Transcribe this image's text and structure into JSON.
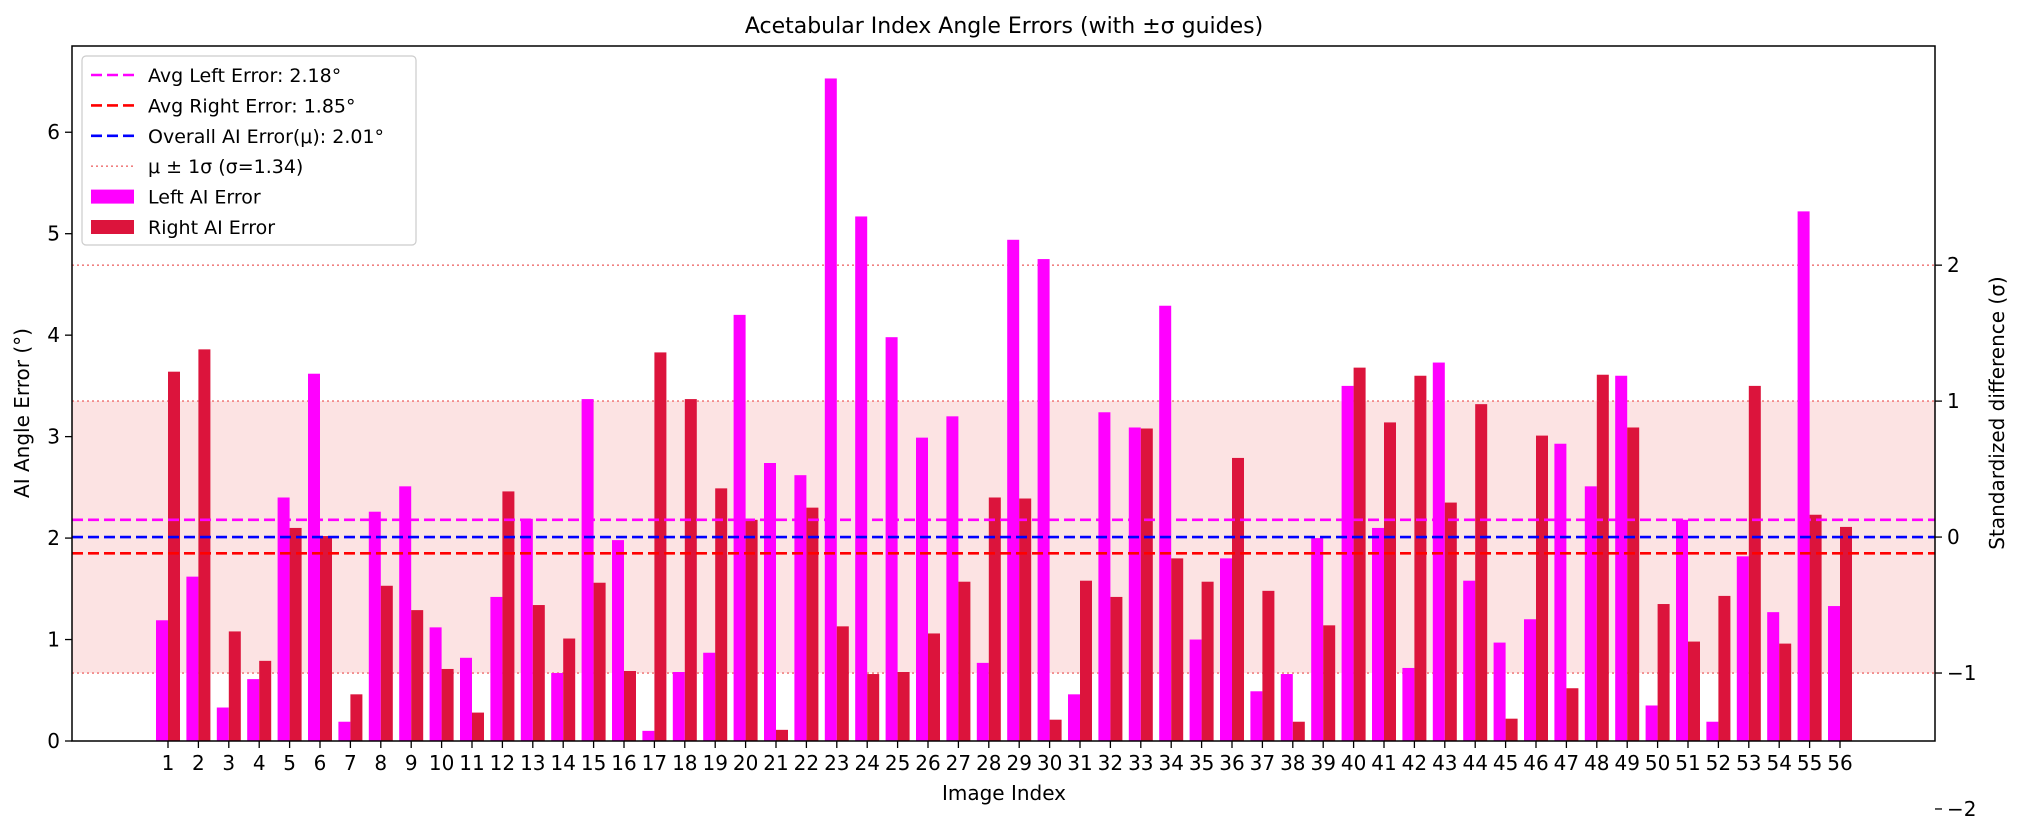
{
  "chart_data": {
    "type": "bar",
    "title": "Acetabular Index Angle Errors (with ±σ guides)",
    "xlabel": "Image Index",
    "ylabel": "AI Angle Error (°)",
    "ylabel_right": "Standardized difference (σ)",
    "ylim": [
      0,
      6.85
    ],
    "yticks": [
      0,
      1,
      2,
      3,
      4,
      5,
      6
    ],
    "y2ticks": [
      -2,
      -1,
      0,
      1,
      2
    ],
    "grid": false,
    "legend_position": "upper-left",
    "categories": [
      "1",
      "2",
      "3",
      "4",
      "5",
      "6",
      "7",
      "8",
      "9",
      "10",
      "11",
      "12",
      "13",
      "14",
      "15",
      "16",
      "17",
      "18",
      "19",
      "20",
      "21",
      "22",
      "23",
      "24",
      "25",
      "26",
      "27",
      "28",
      "29",
      "30",
      "31",
      "32",
      "33",
      "34",
      "35",
      "36",
      "37",
      "38",
      "39",
      "40",
      "41",
      "42",
      "43",
      "44",
      "45",
      "46",
      "47",
      "48",
      "49",
      "50",
      "51",
      "52",
      "53",
      "54",
      "55",
      "56"
    ],
    "series": [
      {
        "name": "Left AI Error",
        "color": "#ff00ff",
        "values": [
          1.19,
          1.62,
          0.33,
          0.61,
          2.4,
          3.62,
          0.19,
          2.26,
          2.51,
          1.12,
          0.82,
          1.42,
          2.19,
          0.67,
          3.37,
          1.98,
          0.1,
          0.68,
          0.87,
          4.2,
          2.74,
          2.62,
          6.53,
          5.17,
          3.98,
          2.99,
          3.2,
          0.77,
          4.94,
          4.75,
          0.46,
          3.24,
          3.09,
          4.29,
          1.0,
          1.8,
          0.49,
          0.66,
          2.0,
          3.5,
          2.1,
          0.72,
          3.73,
          1.58,
          0.97,
          1.2,
          2.93,
          2.51,
          3.6,
          0.35,
          2.18,
          0.19,
          1.82,
          1.27,
          5.22,
          1.33
        ]
      },
      {
        "name": "Right AI Error",
        "color": "#dc143c",
        "values": [
          3.64,
          3.86,
          1.08,
          0.79,
          2.1,
          2.02,
          0.46,
          1.53,
          1.29,
          0.71,
          0.28,
          2.46,
          1.34,
          1.01,
          1.56,
          0.69,
          3.83,
          3.37,
          2.49,
          2.18,
          0.11,
          2.3,
          1.13,
          0.66,
          0.68,
          1.06,
          1.57,
          2.4,
          2.39,
          0.21,
          1.58,
          1.42,
          3.08,
          1.8,
          1.57,
          2.79,
          1.48,
          0.19,
          1.14,
          3.68,
          3.14,
          3.6,
          2.35,
          3.32,
          0.22,
          3.01,
          0.52,
          3.61,
          3.09,
          1.35,
          0.98,
          1.43,
          3.5,
          0.96,
          2.23,
          2.11
        ]
      }
    ],
    "reference_lines": [
      {
        "label": "Avg Left Error: 2.18°",
        "value": 2.18,
        "color": "#ff00ff",
        "style": "dashed"
      },
      {
        "label": "Avg Right Error: 1.85°",
        "value": 1.85,
        "color": "#ff0000",
        "style": "dashed"
      },
      {
        "label": "Overall AI Error(μ): 2.01°",
        "value": 2.01,
        "color": "#0000ff",
        "style": "dashed"
      }
    ],
    "sigma_band": {
      "label": "μ ± 1σ (σ=1.34)",
      "mu": 2.01,
      "sigma": 1.34,
      "extra_line": 4.69,
      "color": "#f08080"
    }
  }
}
